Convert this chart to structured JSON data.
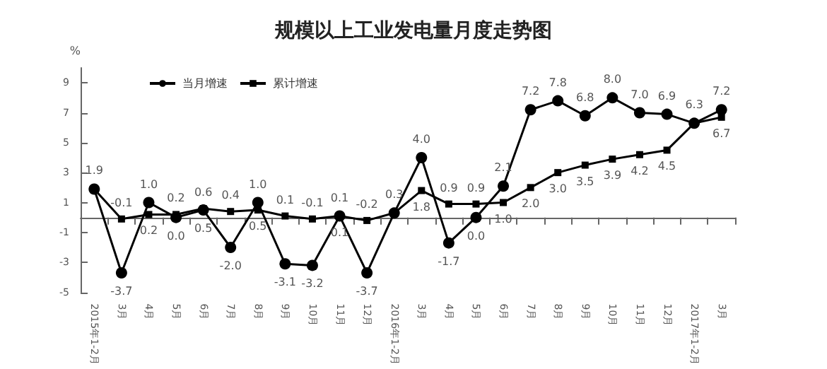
{
  "chart_data": {
    "type": "line",
    "title": "规模以上工业发电量月度走势图",
    "ylabel": "%",
    "categories": [
      "2015年1-2月",
      "3月",
      "4月",
      "5月",
      "6月",
      "7月",
      "8月",
      "9月",
      "10月",
      "11月",
      "12月",
      "2016年1-2月",
      "3月",
      "4月",
      "5月",
      "6月",
      "7月",
      "8月",
      "9月",
      "10月",
      "11月",
      "12月",
      "2017年1-2月",
      "3月"
    ],
    "series": [
      {
        "name": "当月增速",
        "color": "#000000",
        "marker": "circle",
        "values": [
          1.9,
          -3.7,
          1.0,
          0.0,
          0.5,
          -2.0,
          1.0,
          -3.1,
          -3.2,
          0.1,
          -3.7,
          0.3,
          4.0,
          -1.7,
          0.0,
          2.1,
          7.2,
          7.8,
          6.8,
          8.0,
          7.0,
          6.9,
          6.3,
          7.2
        ],
        "value_labels": [
          "1.9",
          "-3.7",
          "1.0",
          "0.0",
          "0.5",
          "-2.0",
          "1.0",
          "-3.1",
          "-3.2",
          "0.1",
          "-3.7",
          "0.3",
          "4.0",
          "-1.7",
          "0.0",
          "2.1",
          "7.2",
          "7.8",
          "6.8",
          "8.0",
          "7.0",
          "6.9",
          "6.3",
          "7.2"
        ]
      },
      {
        "name": "累计增速",
        "color": "#000000",
        "marker": "square",
        "values": [
          1.9,
          -0.1,
          0.2,
          0.2,
          0.6,
          0.4,
          0.5,
          0.1,
          -0.1,
          0.1,
          -0.2,
          0.3,
          1.8,
          0.9,
          0.9,
          1.0,
          2.0,
          3.0,
          3.5,
          3.9,
          4.2,
          4.5,
          6.3,
          6.7
        ],
        "value_labels": [
          null,
          "-0.1",
          "0.2",
          "0.2",
          "0.6",
          "0.4",
          "0.5",
          "0.1",
          "-0.1",
          "0.1",
          "-0.2",
          null,
          "1.8",
          "0.9",
          "0.9",
          "1.0",
          "2.0",
          "3.0",
          "3.5",
          "3.9",
          "4.2",
          "4.5",
          null,
          "6.7"
        ]
      }
    ],
    "ylim": [
      -5,
      10
    ],
    "yticks": [
      -5,
      -3,
      -1,
      1,
      3,
      5,
      7,
      9
    ],
    "grid": false,
    "legend": "top left",
    "line_style": "solid"
  }
}
